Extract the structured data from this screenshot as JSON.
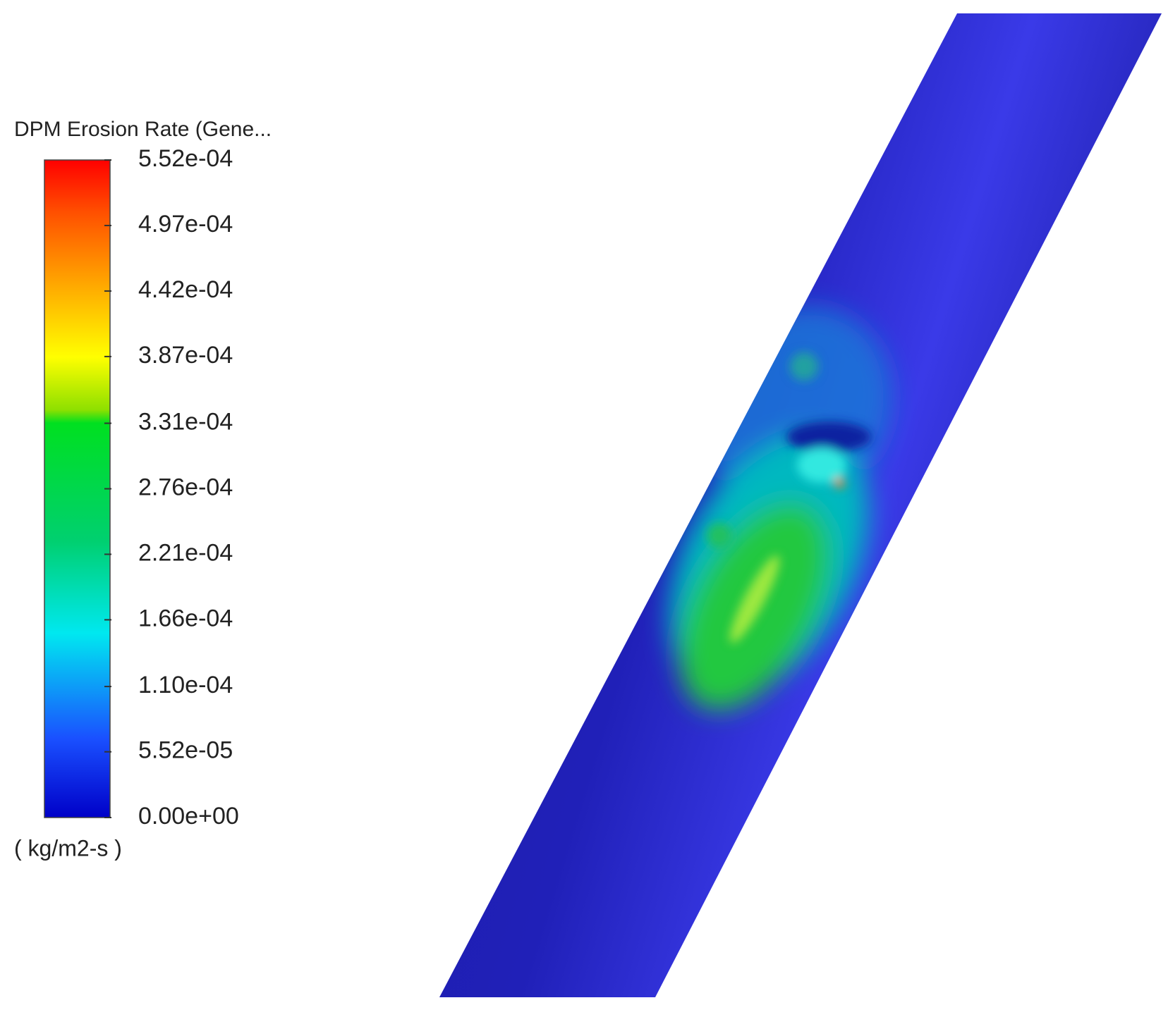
{
  "legend": {
    "title": "DPM Erosion Rate (Gene...",
    "ticks": [
      {
        "value": 0.000552,
        "label": "5.52e-04"
      },
      {
        "value": 0.000497,
        "label": "4.97e-04"
      },
      {
        "value": 0.000442,
        "label": "4.42e-04"
      },
      {
        "value": 0.000387,
        "label": "3.87e-04"
      },
      {
        "value": 0.000331,
        "label": "3.31e-04"
      },
      {
        "value": 0.000276,
        "label": "2.76e-04"
      },
      {
        "value": 0.000221,
        "label": "2.21e-04"
      },
      {
        "value": 0.000166,
        "label": "1.66e-04"
      },
      {
        "value": 0.00011,
        "label": "1.10e-04"
      },
      {
        "value": 5.52e-05,
        "label": "5.52e-05"
      },
      {
        "value": 0,
        "label": "0.00e+00"
      }
    ],
    "unit": "( kg/m2-s )"
  }
}
